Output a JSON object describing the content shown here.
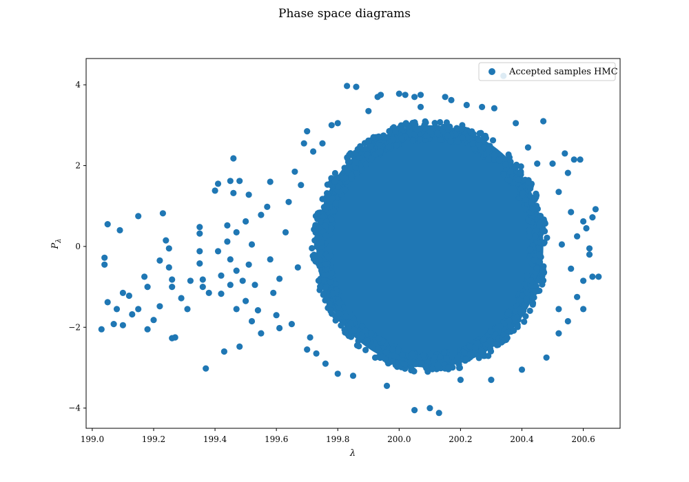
{
  "chart_data": {
    "type": "scatter",
    "title": "Phase space diagrams",
    "xlabel": "λ",
    "ylabel": "P_λ",
    "xlim": [
      198.98,
      200.72
    ],
    "ylim": [
      -4.5,
      4.65
    ],
    "x_ticks": [
      199.0,
      199.2,
      199.4,
      199.6,
      199.8,
      200.0,
      200.2,
      200.4,
      200.6
    ],
    "x_tick_labels": [
      "199.0",
      "199.2",
      "199.4",
      "199.6",
      "199.8",
      "200.0",
      "200.2",
      "200.4",
      "200.6"
    ],
    "y_ticks": [
      -4,
      -2,
      0,
      2,
      4
    ],
    "y_tick_labels": [
      "−4",
      "−2",
      "0",
      "2",
      "4"
    ],
    "grid": false,
    "legend": {
      "position": "top-right",
      "entries": [
        "Accepted samples HMC"
      ]
    },
    "series": [
      {
        "name": "Accepted samples HMC",
        "color": "#1f77b4",
        "dense_core": {
          "center": [
            200.1,
            0.0
          ],
          "x_radius": 0.37,
          "y_radius": 3.0
        },
        "points": [
          [
            199.03,
            -2.05
          ],
          [
            199.04,
            -0.28
          ],
          [
            199.04,
            -0.45
          ],
          [
            199.05,
            0.55
          ],
          [
            199.05,
            -1.38
          ],
          [
            199.07,
            -1.92
          ],
          [
            199.08,
            -1.55
          ],
          [
            199.09,
            0.4
          ],
          [
            199.1,
            -1.95
          ],
          [
            199.1,
            -1.15
          ],
          [
            199.12,
            -1.22
          ],
          [
            199.13,
            -1.68
          ],
          [
            199.15,
            0.75
          ],
          [
            199.15,
            -1.55
          ],
          [
            199.17,
            -0.75
          ],
          [
            199.18,
            -1.0
          ],
          [
            199.18,
            -2.05
          ],
          [
            199.2,
            -1.82
          ],
          [
            199.22,
            -0.35
          ],
          [
            199.22,
            -1.48
          ],
          [
            199.23,
            0.82
          ],
          [
            199.24,
            0.15
          ],
          [
            199.25,
            -0.05
          ],
          [
            199.25,
            -0.52
          ],
          [
            199.26,
            -0.82
          ],
          [
            199.26,
            -1.0
          ],
          [
            199.26,
            -2.27
          ],
          [
            199.27,
            -2.25
          ],
          [
            199.29,
            -1.28
          ],
          [
            199.31,
            -1.55
          ],
          [
            199.32,
            -0.85
          ],
          [
            199.35,
            0.48
          ],
          [
            199.35,
            0.32
          ],
          [
            199.35,
            -0.12
          ],
          [
            199.35,
            -0.42
          ],
          [
            199.36,
            -0.82
          ],
          [
            199.36,
            -1.0
          ],
          [
            199.37,
            -3.02
          ],
          [
            199.38,
            -1.15
          ],
          [
            199.4,
            1.38
          ],
          [
            199.41,
            1.55
          ],
          [
            199.41,
            -0.12
          ],
          [
            199.42,
            -0.72
          ],
          [
            199.42,
            -1.17
          ],
          [
            199.43,
            -2.6
          ],
          [
            199.44,
            0.52
          ],
          [
            199.44,
            0.12
          ],
          [
            199.45,
            -0.32
          ],
          [
            199.45,
            1.62
          ],
          [
            199.45,
            -0.95
          ],
          [
            199.46,
            2.18
          ],
          [
            199.46,
            1.32
          ],
          [
            199.47,
            0.35
          ],
          [
            199.47,
            -0.6
          ],
          [
            199.47,
            -1.55
          ],
          [
            199.48,
            1.62
          ],
          [
            199.48,
            -2.48
          ],
          [
            199.49,
            -0.85
          ],
          [
            199.5,
            0.62
          ],
          [
            199.5,
            -1.35
          ],
          [
            199.51,
            1.28
          ],
          [
            199.51,
            -0.45
          ],
          [
            199.52,
            0.05
          ],
          [
            199.52,
            -1.85
          ],
          [
            199.53,
            -0.95
          ],
          [
            199.54,
            -1.58
          ],
          [
            199.55,
            -2.15
          ],
          [
            199.55,
            0.78
          ],
          [
            199.57,
            0.98
          ],
          [
            199.58,
            1.6
          ],
          [
            199.58,
            -0.32
          ],
          [
            199.59,
            -1.15
          ],
          [
            199.6,
            -1.7
          ],
          [
            199.61,
            -0.8
          ],
          [
            199.61,
            -2.02
          ],
          [
            199.63,
            0.35
          ],
          [
            199.64,
            1.1
          ],
          [
            199.65,
            -1.92
          ],
          [
            199.66,
            1.85
          ],
          [
            199.67,
            -0.52
          ],
          [
            199.68,
            1.52
          ],
          [
            199.69,
            2.55
          ],
          [
            199.7,
            -2.55
          ],
          [
            199.7,
            2.85
          ],
          [
            199.71,
            -2.25
          ],
          [
            199.72,
            2.35
          ],
          [
            199.73,
            -2.65
          ],
          [
            199.75,
            2.55
          ],
          [
            199.76,
            -2.9
          ],
          [
            199.78,
            3.0
          ],
          [
            199.8,
            3.05
          ],
          [
            199.8,
            -3.15
          ],
          [
            199.83,
            3.97
          ],
          [
            199.86,
            3.95
          ],
          [
            199.85,
            -3.2
          ],
          [
            199.9,
            3.35
          ],
          [
            199.93,
            3.7
          ],
          [
            199.94,
            3.75
          ],
          [
            199.96,
            -3.45
          ],
          [
            200.0,
            3.78
          ],
          [
            200.02,
            3.75
          ],
          [
            200.05,
            3.7
          ],
          [
            200.05,
            -4.05
          ],
          [
            200.07,
            3.75
          ],
          [
            200.07,
            3.45
          ],
          [
            200.1,
            -4.0
          ],
          [
            200.13,
            -4.12
          ],
          [
            200.15,
            3.7
          ],
          [
            200.17,
            3.62
          ],
          [
            200.2,
            -3.3
          ],
          [
            200.22,
            3.5
          ],
          [
            200.27,
            3.45
          ],
          [
            200.3,
            -3.3
          ],
          [
            200.31,
            3.42
          ],
          [
            200.34,
            4.22
          ],
          [
            200.38,
            3.05
          ],
          [
            200.4,
            -3.05
          ],
          [
            200.42,
            2.45
          ],
          [
            200.45,
            2.05
          ],
          [
            200.47,
            3.1
          ],
          [
            200.48,
            -2.75
          ],
          [
            200.5,
            2.05
          ],
          [
            200.52,
            -1.55
          ],
          [
            200.52,
            1.35
          ],
          [
            200.52,
            -2.15
          ],
          [
            200.54,
            2.3
          ],
          [
            200.55,
            -1.85
          ],
          [
            200.56,
            -0.55
          ],
          [
            200.56,
            0.85
          ],
          [
            200.57,
            2.15
          ],
          [
            200.58,
            0.25
          ],
          [
            200.59,
            2.15
          ],
          [
            200.6,
            -0.85
          ],
          [
            200.6,
            0.62
          ],
          [
            200.6,
            -1.55
          ],
          [
            200.61,
            0.45
          ],
          [
            200.62,
            -0.2
          ],
          [
            200.63,
            0.72
          ],
          [
            200.63,
            -0.75
          ],
          [
            200.64,
            0.92
          ],
          [
            200.65,
            -0.75
          ],
          [
            200.62,
            -0.05
          ],
          [
            200.58,
            -1.25
          ],
          [
            200.55,
            1.82
          ],
          [
            200.53,
            0.05
          ]
        ]
      }
    ]
  }
}
